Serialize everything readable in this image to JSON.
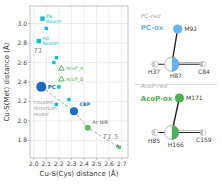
{
  "chart_data": [
    {
      "type": "scatter",
      "xlabel": "Cu-S(Cys) distance (Å)",
      "ylabel": "Cu-S(Met) distance (Å)",
      "xlim": [
        1.97,
        2.75
      ],
      "ylim": [
        1.62,
        3.18
      ],
      "xticks": [
        {
          "value": 2.0,
          "label": "2.0"
        },
        2.1,
        2.2,
        2.3,
        2.4,
        2.5,
        2.6,
        2.7
      ],
      "yticks": [
        1.8,
        {
          "value": 2.0,
          "label": "2.0"
        },
        2.2,
        2.4,
        2.6,
        2.8,
        {
          "value": 3.0,
          "label": "3.0"
        }
      ],
      "grid": true,
      "series": [
        {
          "type": "scatter",
          "marker": "square",
          "color": "#00bcd4",
          "x": [
            2.07,
            2.04,
            2.1,
            2.16,
            2.18,
            2.2,
            2.28,
            2.18
          ],
          "values": [
            3.05,
            2.82,
            2.95,
            2.6,
            2.65,
            2.35,
            2.22,
            2.17
          ],
          "labels": [
            "Pa\nAzurin",
            "Ad\nAzurin",
            null,
            null,
            null,
            null,
            null,
            null
          ]
        },
        {
          "type": "scatter",
          "marker": "triangle",
          "color": "#4caf50",
          "x": [
            2.22,
            2.22
          ],
          "values": [
            2.54,
            2.43
          ],
          "labels": [
            "AcoP_A",
            "AcoP_B"
          ]
        },
        {
          "type": "scatter",
          "marker": "circle",
          "color": "#1a6bbf",
          "x": [
            2.06,
            2.32
          ],
          "values": [
            2.35,
            2.1
          ],
          "labels": [
            "PC",
            "CBP"
          ]
        },
        {
          "type": "scatter",
          "marker": "circle",
          "color": "#66bb6a",
          "x": [
            2.43
          ],
          "values": [
            1.93
          ],
          "labels": [
            "Ac NIR"
          ]
        },
        {
          "type": "scatter",
          "marker": "square",
          "color": "#66bb6a",
          "x": [
            2.68
          ],
          "values": [
            1.73
          ]
        },
        {
          "type": "line",
          "line_style": "dashed",
          "color": "#808080",
          "x": [
            2.06,
            2.32,
            2.43,
            2.68
          ],
          "values": [
            2.35,
            2.1,
            1.93,
            1.73
          ]
        }
      ],
      "annotations": [
        {
          "text": "T1",
          "x": 2.0,
          "y": 2.72
        },
        {
          "text": "T1.5",
          "x": 2.55,
          "y": 1.84
        },
        {
          "text": "coupled\ndistortion\nmodel",
          "x": 2.0,
          "y": 2.13
        }
      ]
    },
    {
      "type": "diagram",
      "series": [
        {
          "subtitle": "PC-red",
          "title": "PC-ox",
          "color": "#64b5f6",
          "labels": [
            "M92",
            "H37",
            "C84",
            "H87"
          ]
        },
        {
          "subtitle": "AcoP-red",
          "title": "AcoP-ox",
          "color": "#4caf50",
          "labels": [
            "M171",
            "H85",
            "C159",
            "H166"
          ]
        }
      ]
    }
  ]
}
